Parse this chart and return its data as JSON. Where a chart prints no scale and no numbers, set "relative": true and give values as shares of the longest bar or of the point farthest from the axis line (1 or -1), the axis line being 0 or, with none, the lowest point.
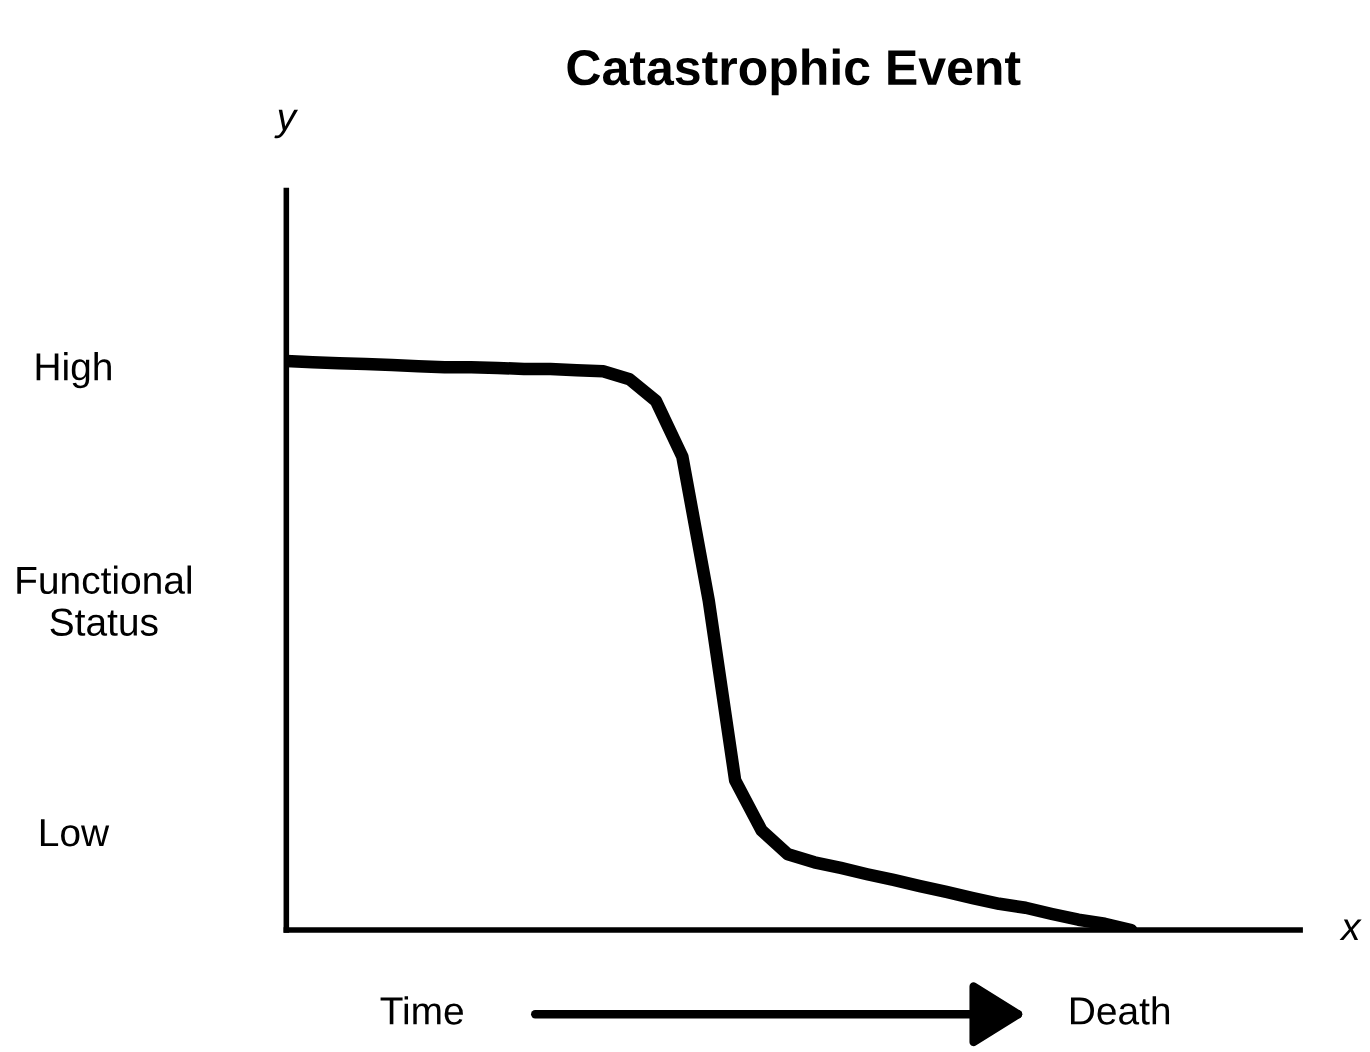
{
  "chart_data": {
    "type": "line",
    "title": "Catastrophic Event",
    "ylabel": "Functional\nStatus",
    "relative": true,
    "color": "#000000",
    "marker": "none",
    "line_style": "solid",
    "categories": [
      null,
      null,
      null,
      null,
      null,
      null,
      null,
      null,
      null,
      null,
      null,
      null,
      null,
      null,
      null,
      null,
      null,
      null,
      null,
      null,
      null,
      null,
      null,
      null,
      null,
      null,
      null,
      null,
      null,
      null,
      null,
      null,
      null
    ],
    "values": [
      1.0,
      0.998,
      0.996,
      0.995,
      0.993,
      0.991,
      0.989,
      0.989,
      0.988,
      0.986,
      0.986,
      0.984,
      0.982,
      0.968,
      0.93,
      0.832,
      0.579,
      0.263,
      0.175,
      0.133,
      0.119,
      0.109,
      0.098,
      0.088,
      0.077,
      0.067,
      0.056,
      0.046,
      0.039,
      0.028,
      0.018,
      0.011,
      0
    ],
    "annotations": [
      "y",
      "x",
      "High",
      "Low",
      "Time",
      "Death"
    ]
  }
}
